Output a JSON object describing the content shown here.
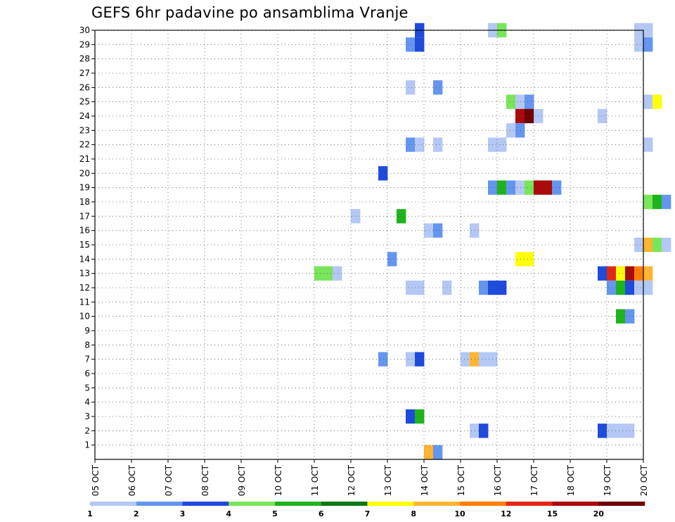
{
  "chart_data": {
    "type": "heatmap",
    "title": "GEFS 6hr padavine po ansamblima Vranje",
    "xlabel": "",
    "ylabel": "",
    "x_ticks": [
      "05 OCT",
      "06 OCT",
      "07 OCT",
      "08 OCT",
      "09 OCT",
      "10 OCT",
      "11 OCT",
      "12 OCT",
      "13 OCT",
      "14 OCT",
      "15 OCT",
      "16 OCT",
      "17 OCT",
      "18 OCT",
      "19 OCT",
      "20 OCT"
    ],
    "y_ticks": [
      "1",
      "2",
      "3",
      "4",
      "5",
      "6",
      "7",
      "8",
      "9",
      "10",
      "11",
      "12",
      "13",
      "14",
      "15",
      "16",
      "17",
      "18",
      "19",
      "20",
      "21",
      "22",
      "23",
      "24",
      "25",
      "26",
      "27",
      "28",
      "29",
      "30"
    ],
    "ylim": [
      0,
      30
    ],
    "grid": true,
    "time_step_hours": 6,
    "colorbar": {
      "labels": [
        "1",
        "2",
        "3",
        "4",
        "5",
        "6",
        "7",
        "8",
        "10",
        "12",
        "15",
        "20"
      ],
      "colors": [
        "#b4c8f5",
        "#6496f0",
        "#1e4bdc",
        "#78e65a",
        "#1eb41e",
        "#0a7814",
        "#ffff0a",
        "#ffb432",
        "#ff7d0a",
        "#e12814",
        "#aa0a0a",
        "#6e0000"
      ]
    },
    "cells": [
      {
        "time": "05 OCT 00Z",
        "member": 30,
        "class": 0
      }
    ]
  }
}
